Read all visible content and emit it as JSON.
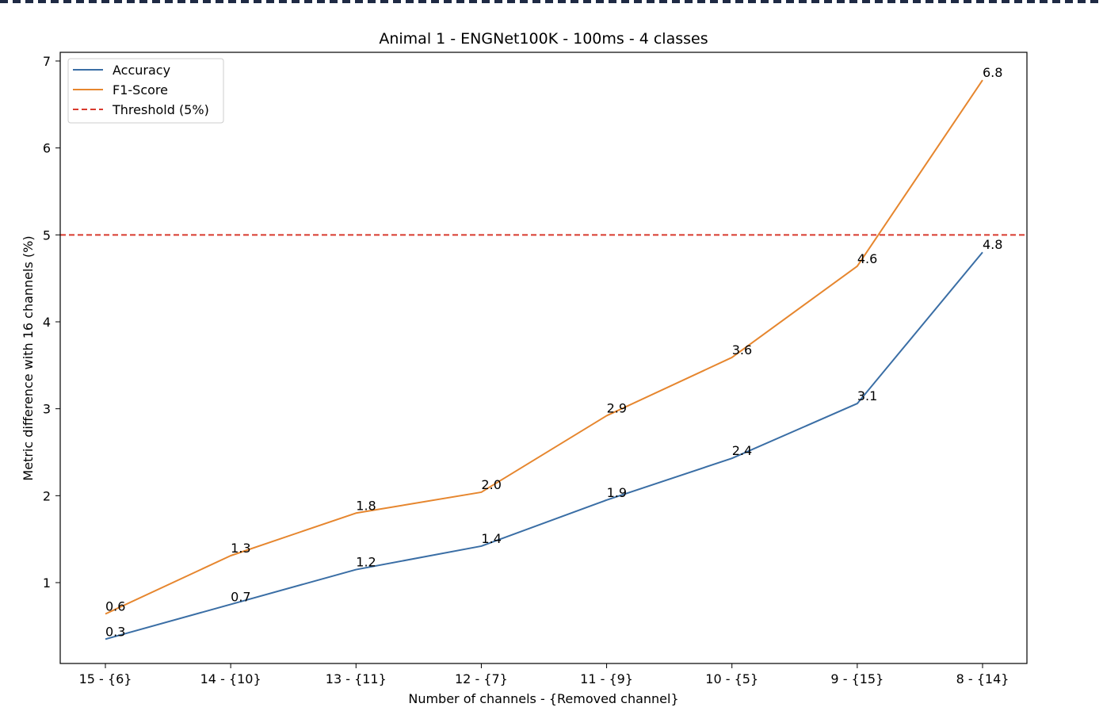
{
  "chart_data": {
    "type": "line",
    "title": "Animal 1 - ENGNet100K - 100ms - 4 classes",
    "xlabel": "Number of channels - {Removed channel}",
    "ylabel": "Metric difference with 16 channels (%)",
    "categories": [
      "15 - {6}",
      "14 - {10}",
      "13 - {11}",
      "12 - {7}",
      "11 - {9}",
      "10 - {5}",
      "9 - {15}",
      "8 - {14}"
    ],
    "series": [
      {
        "name": "Accuracy",
        "color": "#3a6ea5",
        "values": [
          0.35,
          0.75,
          1.15,
          1.42,
          1.95,
          2.43,
          3.06,
          4.8
        ],
        "labels": [
          "0.3",
          "0.7",
          "1.2",
          "1.4",
          "1.9",
          "2.4",
          "3.1",
          "4.8"
        ]
      },
      {
        "name": "F1-Score",
        "color": "#e6862e",
        "values": [
          0.64,
          1.31,
          1.8,
          2.04,
          2.92,
          3.59,
          4.64,
          6.78
        ],
        "labels": [
          "0.6",
          "1.3",
          "1.8",
          "2.0",
          "2.9",
          "3.6",
          "4.6",
          "6.8"
        ]
      }
    ],
    "threshold": {
      "name": "Threshold (5%)",
      "value": 5,
      "color": "#d83a2e",
      "style": "dashed"
    },
    "yticks": [
      "1",
      "2",
      "3",
      "4",
      "5",
      "6",
      "7"
    ],
    "ylim": [
      0.07,
      7.1
    ],
    "grid": false,
    "legend_position": "top-left"
  }
}
